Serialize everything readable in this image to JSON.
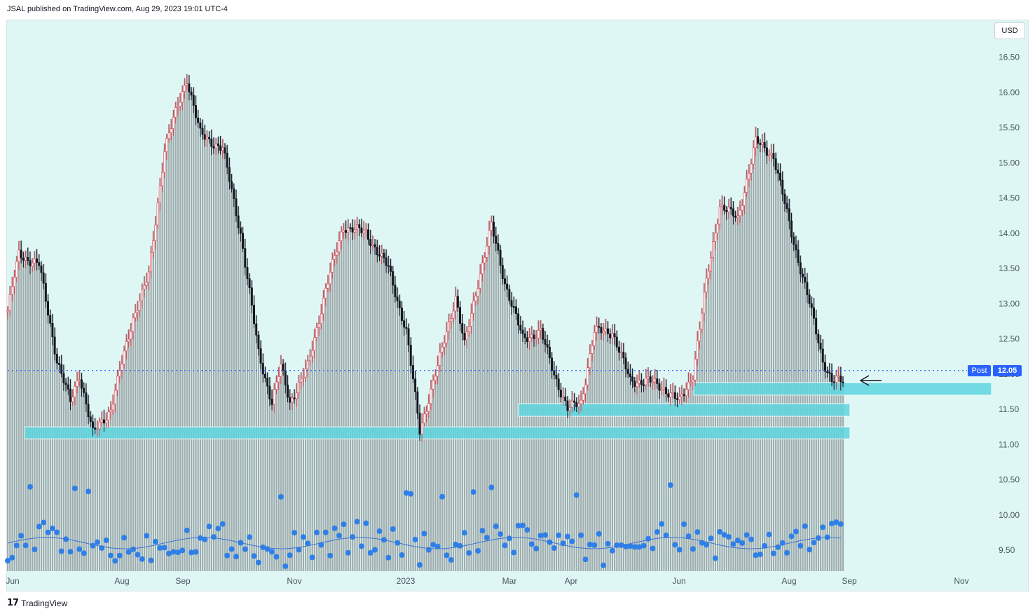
{
  "header": {
    "published_text": "JSAL published on TradingView.com, Aug 29, 2023 19:01 UTC-4"
  },
  "toolbar": {
    "currency_label": "USD"
  },
  "price_tag": {
    "post_label": "Post",
    "last_value": "12.05"
  },
  "footer": {
    "brand": "TradingView",
    "logo_glyph": "17"
  },
  "colors": {
    "background": "#def7f4",
    "candle_up": "#d9434f",
    "candle_down": "#131722",
    "volume_bar": "#9aa3a6",
    "zone_fill": "#5fd6df",
    "price_line": "#2962ff",
    "dot": "#2f7fe8",
    "ma_line": "#3a74d8"
  },
  "chart_data": {
    "type": "candlestick",
    "y_axis_ticks": [
      "16.50",
      "16.00",
      "15.50",
      "15.00",
      "14.50",
      "14.00",
      "13.50",
      "13.00",
      "12.50",
      "12.00",
      "11.50",
      "11.00",
      "10.50",
      "10.00",
      "9.50"
    ],
    "x_axis_ticks": [
      "Jun",
      "Aug",
      "Sep",
      "Nov",
      "2023",
      "Mar",
      "Apr",
      "Jun",
      "Aug",
      "Sep",
      "Nov"
    ],
    "ylim": [
      9.2,
      16.8
    ],
    "last_price": 12.05,
    "price_path": [
      [
        0,
        12.9
      ],
      [
        5,
        13.7
      ],
      [
        14,
        13.55
      ],
      [
        22,
        12.2
      ],
      [
        28,
        11.6
      ],
      [
        32,
        12.0
      ],
      [
        38,
        11.15
      ],
      [
        46,
        11.5
      ],
      [
        56,
        12.8
      ],
      [
        63,
        13.4
      ],
      [
        70,
        15.2
      ],
      [
        80,
        16.2
      ],
      [
        86,
        15.4
      ],
      [
        96,
        15.2
      ],
      [
        104,
        14.0
      ],
      [
        112,
        12.3
      ],
      [
        118,
        11.6
      ],
      [
        122,
        12.1
      ],
      [
        126,
        11.6
      ],
      [
        134,
        12.1
      ],
      [
        142,
        13.2
      ],
      [
        150,
        14.1
      ],
      [
        160,
        14.0
      ],
      [
        170,
        13.5
      ],
      [
        178,
        12.6
      ],
      [
        184,
        11.2
      ],
      [
        192,
        12.1
      ],
      [
        200,
        13.1
      ],
      [
        204,
        12.4
      ],
      [
        210,
        13.3
      ],
      [
        216,
        14.1
      ],
      [
        222,
        13.3
      ],
      [
        230,
        12.5
      ],
      [
        238,
        12.6
      ],
      [
        244,
        12.0
      ],
      [
        250,
        11.5
      ],
      [
        256,
        11.6
      ],
      [
        262,
        12.6
      ],
      [
        270,
        12.6
      ],
      [
        278,
        11.9
      ],
      [
        286,
        11.9
      ],
      [
        293,
        11.8
      ],
      [
        300,
        11.6
      ],
      [
        306,
        12.0
      ],
      [
        312,
        13.3
      ],
      [
        318,
        14.4
      ],
      [
        326,
        14.2
      ],
      [
        334,
        15.3
      ],
      [
        342,
        15.1
      ],
      [
        350,
        14.0
      ],
      [
        358,
        13.0
      ],
      [
        364,
        12.2
      ],
      [
        368,
        11.9
      ],
      [
        373,
        11.9
      ]
    ],
    "candle_count": 374,
    "support_zones": [
      {
        "from": 11.7,
        "to": 11.88
      },
      {
        "from": 11.4,
        "to": 11.58
      },
      {
        "from": 11.08,
        "to": 11.25
      }
    ],
    "indicator": {
      "name": "",
      "dots_scale": [
        9.3,
        10.75
      ]
    }
  }
}
